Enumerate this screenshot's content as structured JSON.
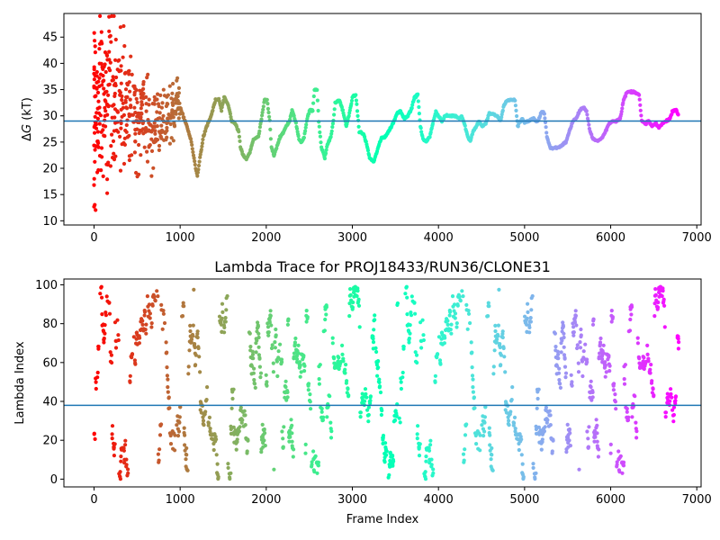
{
  "chart_data": [
    {
      "type": "scatter",
      "title": "",
      "xlabel": "",
      "ylabel": "ΔG (kT)",
      "ylabel_prefix": "Δ",
      "ylabel_var": "G",
      "ylabel_suffix": " (kT)",
      "xlim": [
        -350,
        7050
      ],
      "ylim": [
        9.2,
        49.5
      ],
      "xticks": [
        0,
        1000,
        2000,
        3000,
        4000,
        5000,
        6000,
        7000
      ],
      "yticks": [
        10,
        15,
        20,
        25,
        30,
        35,
        40,
        45
      ],
      "hline": 29.0,
      "hline_color": "#1f77b4",
      "colormap": "rainbow (reversed: frame 0 red, last frame violet)",
      "n_frames": 6790,
      "trace_points": [
        [
          1000,
          31.5
        ],
        [
          1080,
          28
        ],
        [
          1130,
          25
        ],
        [
          1180,
          20
        ],
        [
          1200,
          18.5
        ],
        [
          1230,
          22
        ],
        [
          1270,
          26
        ],
        [
          1310,
          28
        ],
        [
          1360,
          30
        ],
        [
          1410,
          33
        ],
        [
          1450,
          33.2
        ],
        [
          1480,
          31
        ],
        [
          1510,
          33.5
        ],
        [
          1560,
          32
        ],
        [
          1600,
          29
        ],
        [
          1640,
          28.5
        ],
        [
          1680,
          27
        ],
        [
          1700,
          24
        ],
        [
          1730,
          22.5
        ],
        [
          1770,
          21.8
        ],
        [
          1810,
          23
        ],
        [
          1850,
          25.5
        ],
        [
          1880,
          25.8
        ],
        [
          1910,
          26
        ],
        [
          1950,
          30
        ],
        [
          1980,
          33
        ],
        [
          2010,
          33
        ],
        [
          2040,
          29
        ],
        [
          2060,
          24
        ],
        [
          2090,
          22.5
        ],
        [
          2120,
          24
        ],
        [
          2160,
          26
        ],
        [
          2190,
          26.5
        ],
        [
          2230,
          28
        ],
        [
          2270,
          29
        ],
        [
          2300,
          31
        ],
        [
          2340,
          29
        ],
        [
          2380,
          25.5
        ],
        [
          2410,
          25
        ],
        [
          2440,
          26
        ],
        [
          2470,
          29
        ],
        [
          2500,
          31
        ],
        [
          2540,
          31
        ],
        [
          2560,
          35
        ],
        [
          2590,
          35
        ],
        [
          2610,
          29
        ],
        [
          2640,
          24
        ],
        [
          2680,
          22
        ],
        [
          2710,
          24.5
        ],
        [
          2750,
          26
        ],
        [
          2780,
          29
        ],
        [
          2800,
          32.5
        ],
        [
          2850,
          33
        ],
        [
          2890,
          31
        ],
        [
          2930,
          28
        ],
        [
          2960,
          30
        ],
        [
          3000,
          33.5
        ],
        [
          3040,
          34
        ],
        [
          3080,
          27
        ],
        [
          3130,
          26.5
        ],
        [
          3160,
          25
        ],
        [
          3200,
          22
        ],
        [
          3250,
          21.2
        ],
        [
          3300,
          24
        ],
        [
          3340,
          25.8
        ],
        [
          3380,
          26
        ],
        [
          3420,
          27
        ],
        [
          3470,
          28.5
        ],
        [
          3520,
          30.5
        ],
        [
          3560,
          31
        ],
        [
          3600,
          29.5
        ],
        [
          3640,
          30
        ],
        [
          3680,
          31
        ],
        [
          3720,
          33.5
        ],
        [
          3760,
          34
        ],
        [
          3790,
          28
        ],
        [
          3820,
          25.5
        ],
        [
          3860,
          25.2
        ],
        [
          3900,
          26
        ],
        [
          3940,
          29
        ],
        [
          3970,
          30.8
        ],
        [
          4000,
          30
        ],
        [
          4040,
          29
        ],
        [
          4080,
          30
        ],
        [
          4120,
          30
        ],
        [
          4160,
          30
        ],
        [
          4200,
          30
        ],
        [
          4240,
          29.5
        ],
        [
          4270,
          30
        ],
        [
          4310,
          28
        ],
        [
          4340,
          26
        ],
        [
          4370,
          25.2
        ],
        [
          4400,
          27
        ],
        [
          4440,
          28
        ],
        [
          4470,
          29
        ],
        [
          4510,
          28
        ],
        [
          4550,
          28.5
        ],
        [
          4590,
          30.5
        ],
        [
          4630,
          30.3
        ],
        [
          4680,
          30
        ],
        [
          4720,
          29
        ],
        [
          4760,
          32
        ],
        [
          4800,
          33
        ],
        [
          4850,
          33
        ],
        [
          4890,
          33
        ],
        [
          4920,
          28
        ],
        [
          4970,
          29.5
        ],
        [
          5000,
          28.8
        ],
        [
          5050,
          29
        ],
        [
          5100,
          29.5
        ],
        [
          5150,
          28.8
        ],
        [
          5200,
          30.8
        ],
        [
          5230,
          30.5
        ],
        [
          5260,
          26
        ],
        [
          5300,
          23.8
        ],
        [
          5350,
          23.9
        ],
        [
          5400,
          24
        ],
        [
          5440,
          24.5
        ],
        [
          5480,
          25
        ],
        [
          5520,
          27
        ],
        [
          5560,
          29
        ],
        [
          5600,
          29.5
        ],
        [
          5640,
          31
        ],
        [
          5680,
          31.5
        ],
        [
          5720,
          31
        ],
        [
          5740,
          29
        ],
        [
          5760,
          27
        ],
        [
          5800,
          25.5
        ],
        [
          5850,
          25.2
        ],
        [
          5900,
          25.8
        ],
        [
          5940,
          27
        ],
        [
          5980,
          28.5
        ],
        [
          6020,
          29
        ],
        [
          6060,
          29
        ],
        [
          6110,
          29.5
        ],
        [
          6150,
          33
        ],
        [
          6190,
          34.5
        ],
        [
          6240,
          34.6
        ],
        [
          6290,
          34.5
        ],
        [
          6330,
          34
        ],
        [
          6360,
          29
        ],
        [
          6400,
          28.5
        ],
        [
          6440,
          29
        ],
        [
          6480,
          28
        ],
        [
          6520,
          28.5
        ],
        [
          6560,
          27.8
        ],
        [
          6600,
          28.5
        ],
        [
          6640,
          29
        ],
        [
          6690,
          29.5
        ],
        [
          6720,
          31
        ],
        [
          6760,
          31.2
        ],
        [
          6790,
          30
        ]
      ],
      "early_scatter_band": {
        "x_range": [
          0,
          1000
        ],
        "y_range": [
          10,
          49
        ]
      }
    },
    {
      "type": "scatter",
      "title": "Lambda Trace for PROJ18433/RUN36/CLONE31",
      "xlabel": "Frame Index",
      "ylabel": "Lambda Index",
      "xlim": [
        -350,
        7050
      ],
      "ylim": [
        -4,
        103
      ],
      "xticks": [
        0,
        1000,
        2000,
        3000,
        4000,
        5000,
        6000,
        7000
      ],
      "yticks": [
        0,
        20,
        40,
        60,
        80,
        100
      ],
      "hline": 38.0,
      "hline_color": "#1f77b4",
      "colormap": "rainbow (reversed: frame 0 red, last frame violet)",
      "n_frames": 6790,
      "lambda_range": [
        0,
        99
      ]
    }
  ]
}
